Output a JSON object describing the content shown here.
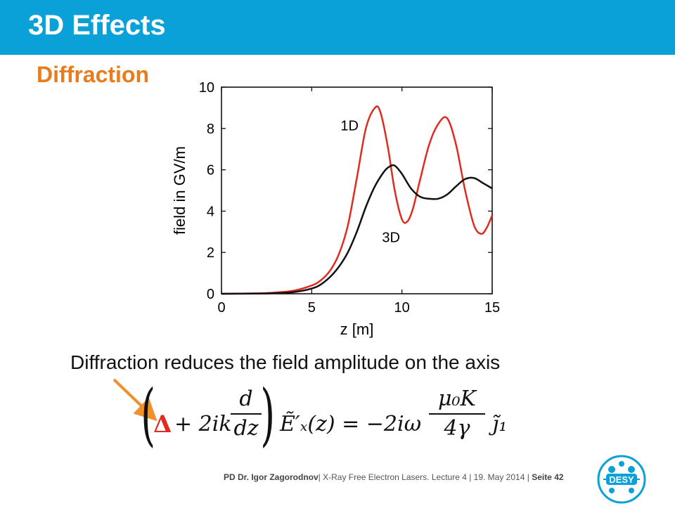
{
  "slide": {
    "title": "3D Effects",
    "subtitle": "Diffraction",
    "caption": "Diffraction reduces the field  amplitude on the axis"
  },
  "colors": {
    "header": "#0aa0d8",
    "accent": "#e87d1e",
    "line_1d": "#e02b20",
    "line_3d": "#111111"
  },
  "chart_data": {
    "type": "line",
    "xlabel": "z [m]",
    "ylabel": "field in GV/m",
    "xlim": [
      0,
      15
    ],
    "ylim": [
      0,
      10
    ],
    "xticks": [
      0,
      5,
      10,
      15
    ],
    "yticks": [
      0,
      2,
      4,
      6,
      8,
      10
    ],
    "grid": false,
    "series": [
      {
        "name": "1D",
        "color": "#e02b20",
        "x": [
          0,
          2,
          3,
          4,
          5,
          5.5,
          6,
          6.5,
          7,
          7.5,
          8,
          8.5,
          8.8,
          9.2,
          9.6,
          10,
          10.3,
          10.6,
          11,
          11.5,
          12,
          12.5,
          13,
          13.5,
          14,
          14.4,
          14.7,
          15
        ],
        "y": [
          0,
          0.02,
          0.06,
          0.15,
          0.4,
          0.65,
          1.1,
          1.9,
          3.3,
          5.6,
          8.0,
          9.0,
          8.8,
          7.2,
          5.0,
          3.6,
          3.5,
          4.1,
          5.5,
          7.2,
          8.2,
          8.5,
          7.2,
          5.0,
          3.3,
          2.9,
          3.2,
          3.8
        ]
      },
      {
        "name": "3D",
        "color": "#111111",
        "x": [
          0,
          2,
          3,
          4,
          5,
          5.5,
          6,
          6.5,
          7,
          7.5,
          8,
          8.5,
          9,
          9.3,
          9.6,
          10,
          10.5,
          11,
          11.5,
          12,
          12.5,
          13,
          13.5,
          14,
          14.5,
          15
        ],
        "y": [
          0,
          0.01,
          0.03,
          0.08,
          0.25,
          0.45,
          0.8,
          1.3,
          2.0,
          3.0,
          4.2,
          5.2,
          5.9,
          6.15,
          6.2,
          5.8,
          5.1,
          4.7,
          4.6,
          4.6,
          4.8,
          5.2,
          5.55,
          5.6,
          5.35,
          5.1
        ]
      }
    ],
    "annotations": [
      "1D",
      "3D"
    ]
  },
  "equation": {
    "delta": "Δ",
    "term1": "+ 2ik",
    "d_num": "d",
    "d_den": "dz",
    "field": "Ẽ′ₓ(z) = −2iω",
    "mu_num": "μ₀K",
    "mu_den": "4γ",
    "j": "j̃₁"
  },
  "footer": {
    "author": "PD Dr. Igor Zagorodnov",
    "details": "| X-Ray Free Electron Lasers. Lecture 4   |  19. May 2014  |",
    "page": "Seite 42"
  },
  "logo": {
    "text": "DESY"
  }
}
